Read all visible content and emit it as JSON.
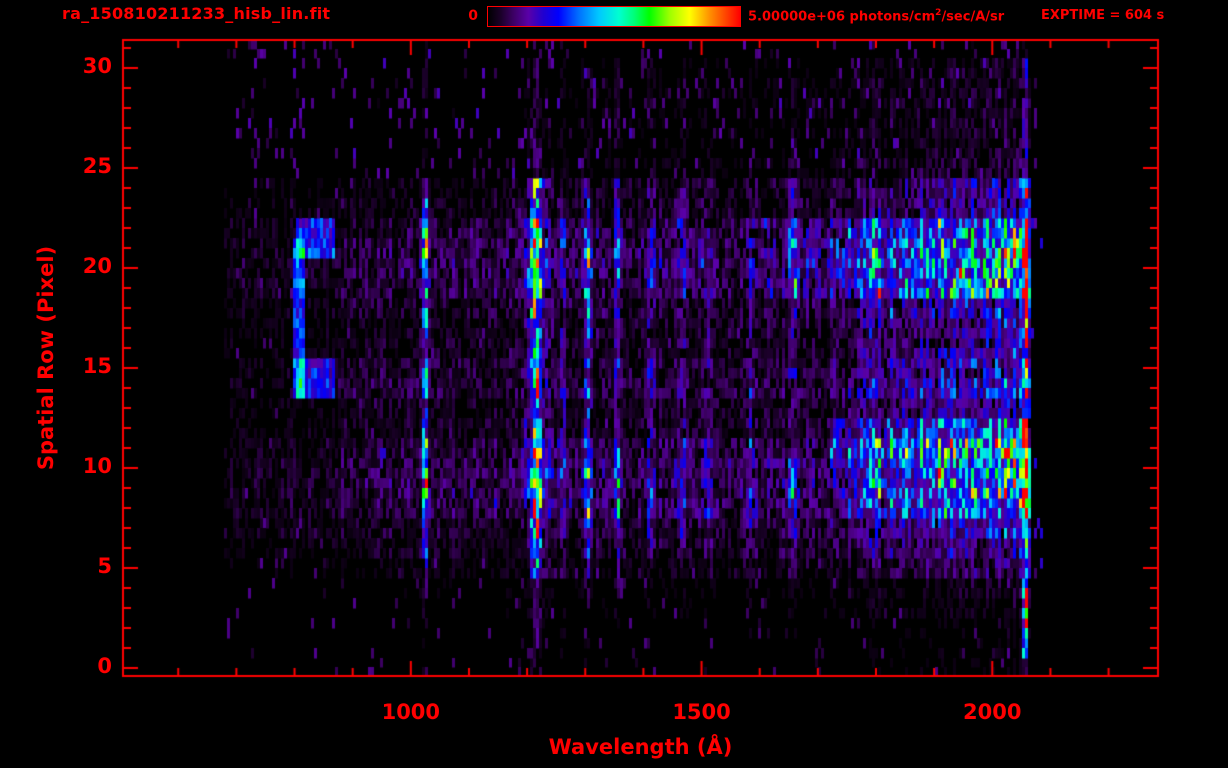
{
  "figure": {
    "title": "ra_150810211233_hisb_lin.fit",
    "exptime_label": "EXPTIME = 604 s",
    "accent_color": "#ff0000",
    "background_color": "#000000",
    "colorbar": {
      "min_label": "0",
      "max_prefix": "5.00000e+06 photons/cm",
      "max_sup": "2",
      "max_suffix": "/sec/A/sr"
    }
  },
  "chart_data": {
    "type": "heatmap",
    "title": "ra_150810211233_hisb_lin.fit",
    "xlabel": "Wavelength (Å)",
    "ylabel": "Spatial Row (Pixel)",
    "x_range": [
      505,
      2285
    ],
    "y_range": [
      -0.4,
      31.4
    ],
    "x_ticks_major": [
      1000,
      1500,
      2000
    ],
    "x_tick_labels": [
      "1000",
      "1500",
      "2000"
    ],
    "x_minor_step": 100,
    "y_ticks_major": [
      0,
      5,
      10,
      15,
      20,
      25,
      30
    ],
    "y_tick_labels": [
      "0",
      "5",
      "10",
      "15",
      "20",
      "25",
      "30"
    ],
    "y_minor_step": 1,
    "grid": false,
    "colorbar_range": [
      0,
      5000000
    ],
    "colorbar_units": "photons/cm^2/sec/A/sr",
    "exposure_time_s": 604,
    "data_extent": {
      "wavelength": [
        680,
        2068
      ],
      "rows": [
        0,
        31
      ]
    },
    "colormap_stops": [
      [
        0.0,
        "#000000"
      ],
      [
        0.05,
        "#1a0028"
      ],
      [
        0.1,
        "#3c0063"
      ],
      [
        0.16,
        "#5a00a8"
      ],
      [
        0.22,
        "#2000d0"
      ],
      [
        0.28,
        "#0000ff"
      ],
      [
        0.36,
        "#0070ff"
      ],
      [
        0.44,
        "#00c8ff"
      ],
      [
        0.52,
        "#00ffd0"
      ],
      [
        0.58,
        "#00ff78"
      ],
      [
        0.64,
        "#00ff00"
      ],
      [
        0.72,
        "#9cff00"
      ],
      [
        0.8,
        "#ffff00"
      ],
      [
        0.88,
        "#ff9000"
      ],
      [
        0.94,
        "#ff4800"
      ],
      [
        1.0,
        "#ff0000"
      ]
    ],
    "emission_lines": [
      [
        1025,
        0.55,
        9
      ],
      [
        1216,
        1.05,
        12
      ],
      [
        1216,
        0.32,
        36
      ],
      [
        1260,
        0.2,
        9
      ],
      [
        1304,
        0.42,
        11
      ],
      [
        1356,
        0.28,
        9
      ],
      [
        1413,
        0.26,
        10
      ],
      [
        1468,
        0.24,
        12
      ],
      [
        1510,
        0.16,
        10
      ],
      [
        1585,
        0.14,
        12
      ],
      [
        1657,
        0.14,
        12
      ],
      [
        1800,
        0.2,
        12
      ],
      [
        2058,
        1.0,
        7
      ]
    ],
    "continuum": [
      [
        680,
        0.05
      ],
      [
        860,
        0.06
      ],
      [
        900,
        0.09
      ],
      [
        1190,
        0.1
      ],
      [
        1230,
        0.1
      ],
      [
        1600,
        0.11
      ],
      [
        1700,
        0.13
      ],
      [
        1800,
        0.22
      ],
      [
        1900,
        0.3
      ],
      [
        2000,
        0.38
      ],
      [
        2048,
        0.42
      ],
      [
        2064,
        0.4
      ],
      [
        2067,
        0.0
      ]
    ],
    "row_profile": [
      0.05,
      0.05,
      0.06,
      0.1,
      0.14,
      0.3,
      0.45,
      0.6,
      0.88,
      0.95,
      0.95,
      0.8,
      0.5,
      0.48,
      0.68,
      0.62,
      0.5,
      0.5,
      0.6,
      0.85,
      0.95,
      0.92,
      0.75,
      0.45,
      0.35,
      0.1,
      0.08,
      0.08,
      0.08,
      0.08,
      0.07,
      0.03
    ],
    "features": {
      "edge": {
        "x": [
          2052,
          2064
        ],
        "rows": [
          1,
          24
        ],
        "min_profile": 0.5
      },
      "lya_column_low_rows": {
        "x": [
          1205,
          1228
        ],
        "rows": [
          0,
          5
        ],
        "min_profile": 0.1
      },
      "arcs": [
        {
          "x": [
            795,
            816
          ],
          "rows": [
            14,
            21
          ],
          "add": 0.33
        },
        {
          "x": [
            800,
            868
          ],
          "rows": [
            20.3,
            22.4
          ],
          "add": 0.3
        },
        {
          "x": [
            803,
            872
          ],
          "rows": [
            13.3,
            15.2
          ],
          "add": 0.26
        }
      ],
      "boosts": [
        {
          "x": [
            1720,
            2064
          ],
          "rows": [
            10.2,
            12.3
          ],
          "mult": 1.9
        },
        {
          "x": [
            1600,
            2064
          ],
          "rows": [
            19.0,
            22.3
          ],
          "mult": 1.35
        },
        {
          "x": [
            1750,
            2064
          ],
          "rows": [
            7.5,
            10.2
          ],
          "mult": 1.25
        },
        {
          "x": [
            1200,
            2064
          ],
          "rows": [
            23.8,
            24.8
          ],
          "mult": 1.3
        },
        {
          "x": [
            1250,
            2066
          ],
          "rows": [
            24.5,
            30.5
          ],
          "mult": 1.8
        }
      ]
    }
  }
}
